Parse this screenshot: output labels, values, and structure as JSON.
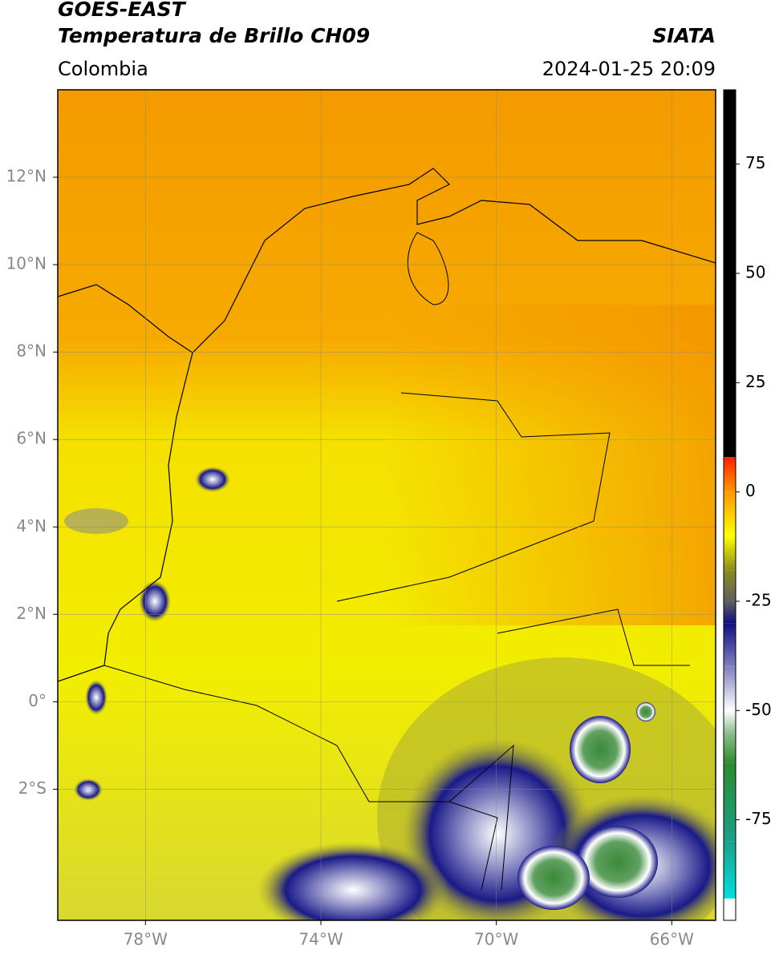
{
  "header": {
    "title": "GOES-EAST",
    "subtitle": "Temperatura de Brillo CH09",
    "source": "SIATA",
    "region": "Colombia",
    "datetime": "2024-01-25 20:09"
  },
  "map": {
    "xlim": [
      -80,
      -65
    ],
    "ylim": [
      -5,
      14
    ],
    "grid": true,
    "xticks": [
      {
        "value": -78,
        "label": "78°W"
      },
      {
        "value": -74,
        "label": "74°W"
      },
      {
        "value": -70,
        "label": "70°W"
      },
      {
        "value": -66,
        "label": "66°W"
      }
    ],
    "yticks": [
      {
        "value": 12,
        "label": "12°N"
      },
      {
        "value": 10,
        "label": "10°N"
      },
      {
        "value": 8,
        "label": "8°N"
      },
      {
        "value": 6,
        "label": "6°N"
      },
      {
        "value": 4,
        "label": "4°N"
      },
      {
        "value": 2,
        "label": "2°N"
      },
      {
        "value": 0,
        "label": "0°"
      },
      {
        "value": -2,
        "label": "2°S"
      }
    ]
  },
  "colorbar": {
    "lim": [
      -98,
      92
    ],
    "ticks": [
      75,
      50,
      25,
      0,
      -25,
      -50,
      -75
    ],
    "stops": [
      {
        "value": -98,
        "color": "#ffffff"
      },
      {
        "value": -93,
        "color": "#ffffff"
      },
      {
        "value": -93,
        "color": "#00e0e0"
      },
      {
        "value": -80,
        "color": "#1aa08a"
      },
      {
        "value": -62,
        "color": "#2e8b2e"
      },
      {
        "value": -55,
        "color": "#90c090"
      },
      {
        "value": -50,
        "color": "#ffffff"
      },
      {
        "value": -40,
        "color": "#8080c0"
      },
      {
        "value": -30,
        "color": "#101080"
      },
      {
        "value": -25,
        "color": "#606060"
      },
      {
        "value": -18,
        "color": "#8a8a20"
      },
      {
        "value": -10,
        "color": "#ffff00"
      },
      {
        "value": 0,
        "color": "#ff9900"
      },
      {
        "value": 8,
        "color": "#ff2000"
      },
      {
        "value": 8,
        "color": "#000000"
      },
      {
        "value": 92,
        "color": "#000000"
      }
    ]
  }
}
